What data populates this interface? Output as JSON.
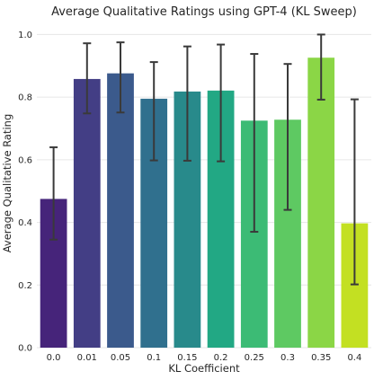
{
  "chart_data": {
    "type": "bar",
    "title": "Average Qualitative Ratings using GPT-4 (KL Sweep)",
    "xlabel": "KL Coefficient",
    "ylabel": "Average Qualitative Rating",
    "categories": [
      "0.0",
      "0.01",
      "0.05",
      "0.1",
      "0.15",
      "0.2",
      "0.25",
      "0.3",
      "0.35",
      "0.4"
    ],
    "values": [
      0.475,
      0.858,
      0.876,
      0.795,
      0.818,
      0.821,
      0.725,
      0.728,
      0.926,
      0.397
    ],
    "error_low": [
      0.345,
      0.748,
      0.751,
      0.598,
      0.597,
      0.595,
      0.37,
      0.44,
      0.792,
      0.202
    ],
    "error_high": [
      0.64,
      0.972,
      0.975,
      0.912,
      0.962,
      0.968,
      0.938,
      0.906,
      1.0,
      0.793
    ],
    "yticks": [
      "0.0",
      "0.2",
      "0.4",
      "0.6",
      "0.8",
      "1.0"
    ],
    "ylim": [
      0,
      1.05
    ],
    "grid": true,
    "colors": [
      "#46247a",
      "#433e85",
      "#3b5a8c",
      "#30708e",
      "#288a8b",
      "#22a884",
      "#3cbb75",
      "#5ec962",
      "#8bd646",
      "#c3e022"
    ]
  }
}
